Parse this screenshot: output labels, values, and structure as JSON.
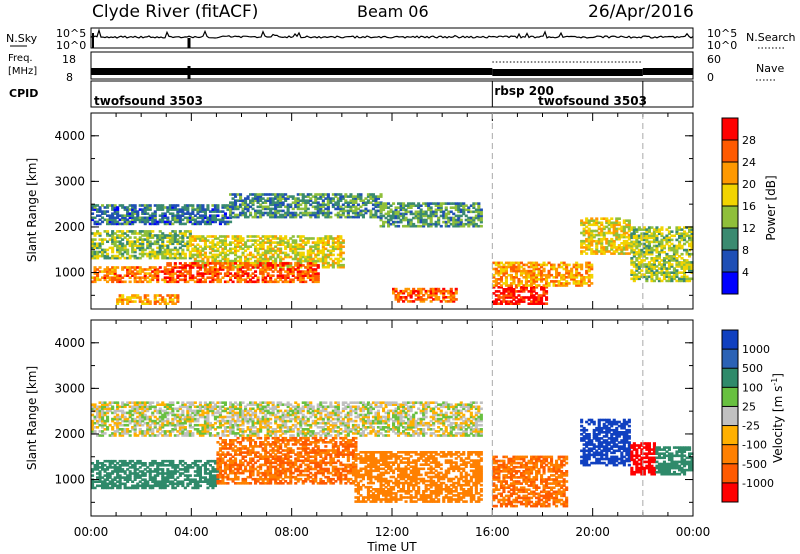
{
  "header": {
    "station": "Clyde River (fitACF)",
    "beam": "Beam 06",
    "date": "26/Apr/2016"
  },
  "panels": {
    "nsky": {
      "left_label": "N.Sky",
      "left_tick_top": "10^5",
      "left_tick_bottom": "10^0",
      "right_tick_top": "10^5",
      "right_tick_bottom": "10^0",
      "right_label": "N.Search"
    },
    "freq": {
      "left_label_line1": "Freq.",
      "left_label_line2": "[MHz]",
      "left_tick_top": "18",
      "left_tick_bottom": "8",
      "right_tick_top": "60",
      "right_tick_bottom": "0",
      "right_label": "Nave"
    },
    "cpid": {
      "label": "CPID",
      "segments": [
        {
          "name": "twofsound 3503",
          "start_hour": 0,
          "end_hour": 16
        },
        {
          "name": "rbsp 200",
          "start_hour": 16,
          "end_hour": 22
        },
        {
          "name": "twofsound 3503",
          "start_hour": 22,
          "end_hour": 24
        }
      ]
    }
  },
  "colors": {
    "power_scale": [
      "#0000ff",
      "#1f4fb5",
      "#3a8a70",
      "#8fbf3a",
      "#f2d400",
      "#ff9900",
      "#ff5a00",
      "#ff0000"
    ],
    "velocity_scale": [
      "#1040c0",
      "#2b62b5",
      "#2f8a6a",
      "#68c040",
      "#c0c0c0",
      "#ffb000",
      "#ff8000",
      "#ff5a00",
      "#ff0000"
    ],
    "ground_scatter": "#c0c0c0"
  },
  "chart_data": [
    {
      "type": "heatmap",
      "title": "",
      "quantity": "Power",
      "ylabel": "Slant Range [km]",
      "xlabel": "",
      "x_range_hours": [
        0,
        24
      ],
      "x_tick_labels": [
        "00:00",
        "04:00",
        "08:00",
        "12:00",
        "16:00",
        "20:00",
        "00:00"
      ],
      "ylim": [
        200,
        4500
      ],
      "y_ticks": [
        1000,
        2000,
        3000,
        4000
      ],
      "colorbar": {
        "label": "Power [dB]",
        "ticks": [
          4,
          8,
          12,
          16,
          20,
          24,
          28
        ]
      },
      "regions": [
        {
          "x0": 0.0,
          "x1": 5.5,
          "y0": 2050,
          "y1": 2500,
          "value": 8
        },
        {
          "x0": 5.5,
          "x1": 11.5,
          "y0": 2200,
          "y1": 2700,
          "value": 10
        },
        {
          "x0": 11.5,
          "x1": 15.5,
          "y0": 2000,
          "y1": 2500,
          "value": 11
        },
        {
          "x0": 0.0,
          "x1": 4.0,
          "y0": 1300,
          "y1": 1900,
          "value": 14
        },
        {
          "x0": 4.0,
          "x1": 10.0,
          "y0": 1100,
          "y1": 1800,
          "value": 17
        },
        {
          "x0": 0.0,
          "x1": 3.0,
          "y0": 780,
          "y1": 1100,
          "value": 24
        },
        {
          "x0": 3.0,
          "x1": 9.0,
          "y0": 780,
          "y1": 1200,
          "value": 26
        },
        {
          "x0": 1.0,
          "x1": 3.5,
          "y0": 300,
          "y1": 500,
          "value": 22
        },
        {
          "x0": 12.0,
          "x1": 14.5,
          "y0": 350,
          "y1": 650,
          "value": 25
        },
        {
          "x0": 16.0,
          "x1": 18.2,
          "y0": 300,
          "y1": 700,
          "value": 30
        },
        {
          "x0": 16.0,
          "x1": 20.0,
          "y0": 700,
          "y1": 1200,
          "value": 22
        },
        {
          "x0": 19.5,
          "x1": 21.5,
          "y0": 1400,
          "y1": 2200,
          "value": 18
        },
        {
          "x0": 21.5,
          "x1": 24.0,
          "y0": 800,
          "y1": 2000,
          "value": 15
        }
      ]
    },
    {
      "type": "heatmap",
      "title": "",
      "quantity": "Velocity",
      "ylabel": "Slant Range [km]",
      "xlabel": "Time UT",
      "x_range_hours": [
        0,
        24
      ],
      "x_tick_labels": [
        "00:00",
        "04:00",
        "08:00",
        "12:00",
        "16:00",
        "20:00",
        "00:00"
      ],
      "ylim": [
        200,
        4500
      ],
      "y_ticks": [
        1000,
        2000,
        3000,
        4000
      ],
      "colorbar": {
        "label": "Velocity [m s^-1]",
        "ticks": [
          1000,
          500,
          100,
          25,
          -25,
          -100,
          -500,
          -1000
        ]
      },
      "regions": [
        {
          "x0": 0.0,
          "x1": 15.5,
          "y0": 1950,
          "y1": 2700,
          "value": 0
        },
        {
          "x0": 0.0,
          "x1": 5.0,
          "y0": 800,
          "y1": 1400,
          "value": 150
        },
        {
          "x0": 5.0,
          "x1": 10.5,
          "y0": 900,
          "y1": 1900,
          "value": -300
        },
        {
          "x0": 10.5,
          "x1": 15.5,
          "y0": 500,
          "y1": 1600,
          "value": -200
        },
        {
          "x0": 16.0,
          "x1": 19.0,
          "y0": 400,
          "y1": 1500,
          "value": -300
        },
        {
          "x0": 19.5,
          "x1": 21.5,
          "y0": 1300,
          "y1": 2300,
          "value": 800
        },
        {
          "x0": 21.5,
          "x1": 22.5,
          "y0": 1100,
          "y1": 1800,
          "value": -1000
        },
        {
          "x0": 22.5,
          "x1": 24.0,
          "y0": 1100,
          "y1": 1700,
          "value": 200
        }
      ]
    }
  ]
}
